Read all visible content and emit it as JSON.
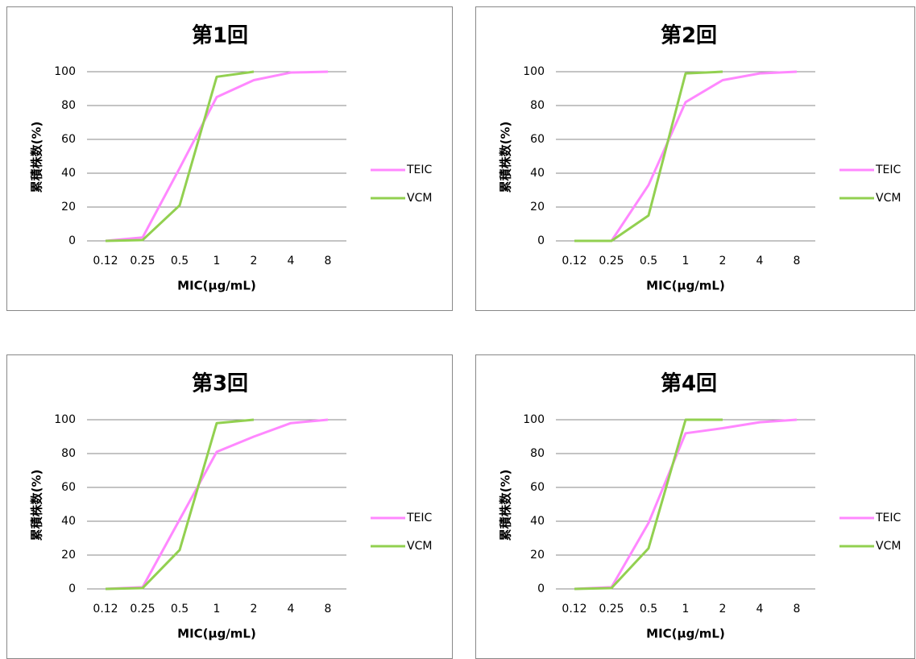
{
  "chart_data": [
    {
      "type": "line",
      "title": "第1回",
      "xlabel": "MIC(μg/mL)",
      "ylabel": "累積株数(%)",
      "categories": [
        "0.12",
        "0.25",
        "0.5",
        "1",
        "2",
        "4",
        "8"
      ],
      "series": [
        {
          "name": "TEIC",
          "color": "#ff88ff",
          "values": [
            0,
            2,
            43,
            85,
            95,
            99.5,
            100
          ]
        },
        {
          "name": "VCM",
          "color": "#92d050",
          "values": [
            0,
            0.5,
            21,
            97,
            100,
            null,
            null
          ]
        }
      ],
      "ylim": [
        0,
        100
      ],
      "yticks": [
        0,
        20,
        40,
        60,
        80,
        100
      ],
      "grid": true,
      "legend": "right"
    },
    {
      "type": "line",
      "title": "第2回",
      "xlabel": "MIC(μg/mL)",
      "ylabel": "累積株数(%)",
      "categories": [
        "0.12",
        "0.25",
        "0.5",
        "1",
        "2",
        "4",
        "8"
      ],
      "series": [
        {
          "name": "TEIC",
          "color": "#ff88ff",
          "values": [
            0,
            0,
            33,
            82,
            95,
            99,
            100
          ]
        },
        {
          "name": "VCM",
          "color": "#92d050",
          "values": [
            0,
            0,
            15,
            99,
            100,
            null,
            null
          ]
        }
      ],
      "ylim": [
        0,
        100
      ],
      "yticks": [
        0,
        20,
        40,
        60,
        80,
        100
      ],
      "grid": true,
      "legend": "right"
    },
    {
      "type": "line",
      "title": "第3回",
      "xlabel": "MIC(μg/mL)",
      "ylabel": "累積株数(%)",
      "categories": [
        "0.12",
        "0.25",
        "0.5",
        "1",
        "2",
        "4",
        "8"
      ],
      "series": [
        {
          "name": "TEIC",
          "color": "#ff88ff",
          "values": [
            0,
            1,
            41,
            81,
            90,
            98,
            100
          ]
        },
        {
          "name": "VCM",
          "color": "#92d050",
          "values": [
            0,
            0.5,
            23,
            98,
            100,
            null,
            null
          ]
        }
      ],
      "ylim": [
        0,
        100
      ],
      "yticks": [
        0,
        20,
        40,
        60,
        80,
        100
      ],
      "grid": true,
      "legend": "right"
    },
    {
      "type": "line",
      "title": "第4回",
      "xlabel": "MIC(μg/mL)",
      "ylabel": "累積株数(%)",
      "categories": [
        "0.12",
        "0.25",
        "0.5",
        "1",
        "2",
        "4",
        "8"
      ],
      "series": [
        {
          "name": "TEIC",
          "color": "#ff88ff",
          "values": [
            0,
            1,
            39,
            92,
            95,
            98.5,
            100
          ]
        },
        {
          "name": "VCM",
          "color": "#92d050",
          "values": [
            0,
            0.5,
            24,
            100,
            100,
            null,
            null
          ]
        }
      ],
      "ylim": [
        0,
        100
      ],
      "yticks": [
        0,
        20,
        40,
        60,
        80,
        100
      ],
      "grid": true,
      "legend": "right"
    }
  ]
}
